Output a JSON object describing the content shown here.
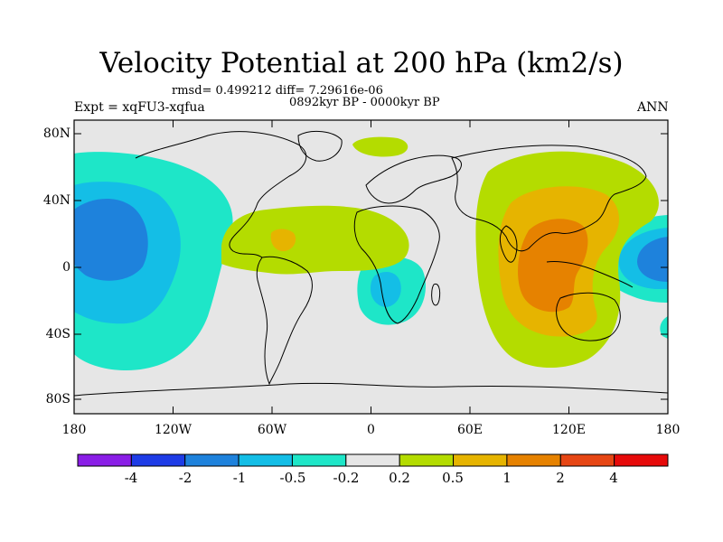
{
  "title": "Velocity Potential at 200 hPa (km2/s)",
  "stats": "rmsd= 0.499212 diff= 7.29616e-06",
  "period": "0892kyr BP - 0000kyr BP",
  "experiment": "Expt = xqFU3-xqfua",
  "season": "ANN",
  "lat_labels": [
    "80N",
    "40N",
    "0",
    "40S",
    "80S"
  ],
  "lon_labels": [
    "180",
    "120W",
    "60W",
    "0",
    "60E",
    "120E",
    "180"
  ],
  "colorbar": {
    "labels": [
      "-4",
      "-2",
      "-1",
      "-0.5",
      "-0.2",
      "0.2",
      "0.5",
      "1",
      "2",
      "4"
    ],
    "colors": [
      "#8a1ee6",
      "#1e3ce6",
      "#1e82dc",
      "#14bee6",
      "#1ee6c8",
      "#e6e6e6",
      "#b4dc00",
      "#e6b400",
      "#e68200",
      "#e64614",
      "#e60a0a"
    ]
  },
  "map_colors": {
    "background": "#e6e6e6",
    "neg_0_2": "#1ee6c8",
    "neg_0_5": "#14bee6",
    "neg_1": "#1e82dc",
    "pos_0_2": "#b4dc00",
    "pos_0_5": "#e6b400",
    "pos_1": "#e68200"
  }
}
